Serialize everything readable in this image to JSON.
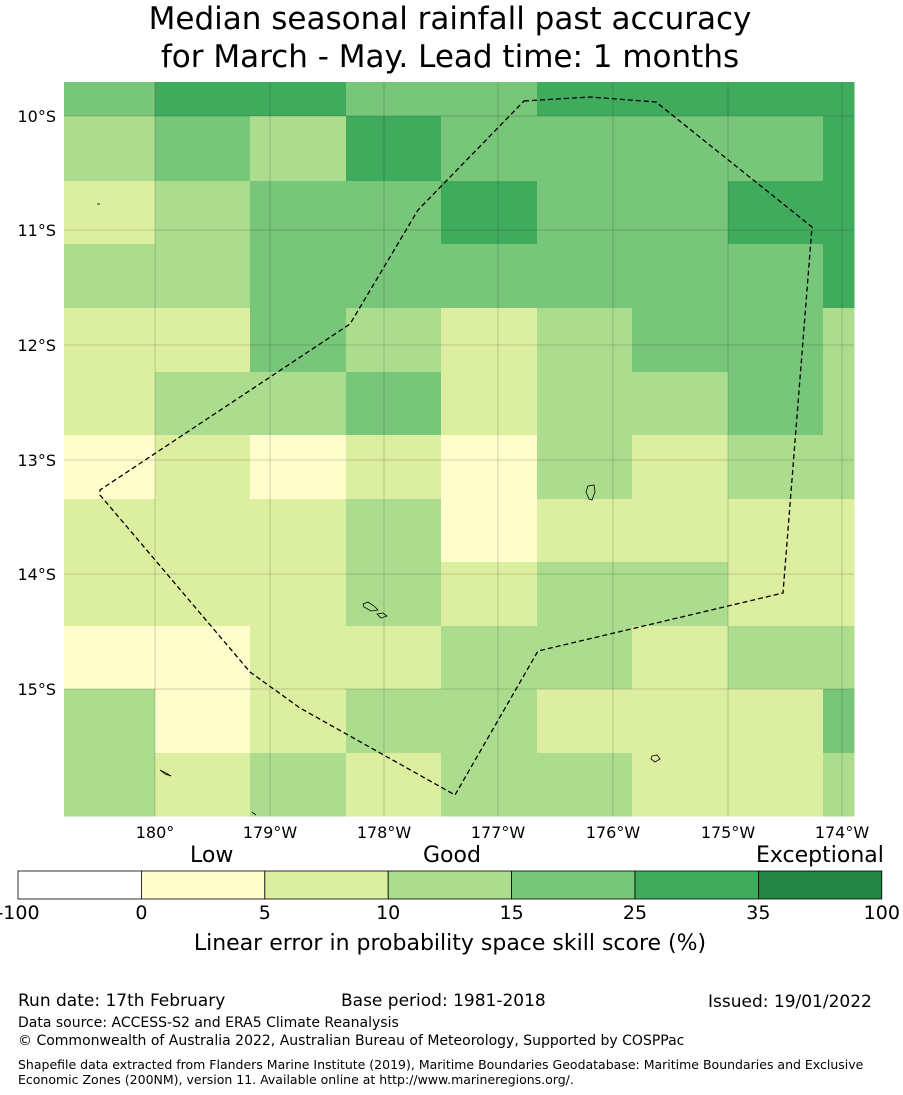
{
  "title": {
    "line1": "Median seasonal rainfall past accuracy",
    "line2": "for March - May. Lead time: 1 months"
  },
  "map": {
    "lat_labels": [
      "10°S",
      "11°S",
      "12°S",
      "13°S",
      "14°S",
      "15°S"
    ],
    "lon_labels": [
      "180°",
      "179°W",
      "178°W",
      "177°W",
      "176°W",
      "175°W",
      "174°W"
    ],
    "grid_rows": [
      [
        "25",
        "35",
        "35",
        "25",
        "25",
        "35",
        "35",
        "35",
        "35"
      ],
      [
        "15",
        "25",
        "15",
        "35",
        "25",
        "25",
        "25",
        "25",
        "35"
      ],
      [
        "10",
        "15",
        "25",
        "25",
        "35",
        "25",
        "25",
        "35",
        "35"
      ],
      [
        "15",
        "15",
        "25",
        "25",
        "25",
        "25",
        "25",
        "25",
        "35"
      ],
      [
        "10",
        "10",
        "25",
        "15",
        "10",
        "15",
        "25",
        "25",
        "15"
      ],
      [
        "10",
        "15",
        "15",
        "25",
        "10",
        "15",
        "15",
        "25",
        "15"
      ],
      [
        "5",
        "10",
        "5",
        "10",
        "5",
        "15",
        "10",
        "15",
        "15"
      ],
      [
        "10",
        "10",
        "10",
        "15",
        "5",
        "10",
        "10",
        "10",
        "10"
      ],
      [
        "10",
        "10",
        "10",
        "15",
        "10",
        "15",
        "15",
        "10",
        "10"
      ],
      [
        "5",
        "5",
        "10",
        "10",
        "15",
        "15",
        "10",
        "15",
        "15"
      ],
      [
        "15",
        "5",
        "10",
        "15",
        "15",
        "10",
        "10",
        "10",
        "25"
      ],
      [
        "15",
        "10",
        "15",
        "10",
        "15",
        "15",
        "10",
        "10",
        "15"
      ]
    ],
    "colors": {
      "0": "#ffffff",
      "5": "#fefdcb",
      "10": "#dcee9f",
      "15": "#acdd8e",
      "25": "#78c679",
      "35": "#41ab5d",
      "100": "#238443"
    }
  },
  "legend": {
    "category_low": "Low",
    "category_good": "Good",
    "category_exceptional": "Exceptional",
    "ticks": [
      "-100",
      "0",
      "5",
      "10",
      "15",
      "25",
      "35",
      "100"
    ],
    "bin_colors": [
      "#ffffff",
      "#fefdcb",
      "#dcee9f",
      "#acdd8e",
      "#78c679",
      "#41ab5d",
      "#238443"
    ],
    "label": "Linear error in probability space skill score (%)"
  },
  "footer": {
    "run_date": "Run date: 17th February",
    "base_period": "Base period: 1981-2018",
    "issued": "Issued: 19/01/2022",
    "data_source": "Data source: ACCESS-S2 and ERA5 Climate Reanalysis",
    "copyright": "© Commonwealth of Australia 2022, Australian Bureau of Meteorology, Supported by COSPPac",
    "shapefile": "Shapefile data extracted from Flanders Marine Institute (2019), Maritime Boundaries Geodatabase: Maritime Boundaries and Exclusive Economic Zones (200NM), version 11. Available online at http://www.marineregions.org/."
  }
}
